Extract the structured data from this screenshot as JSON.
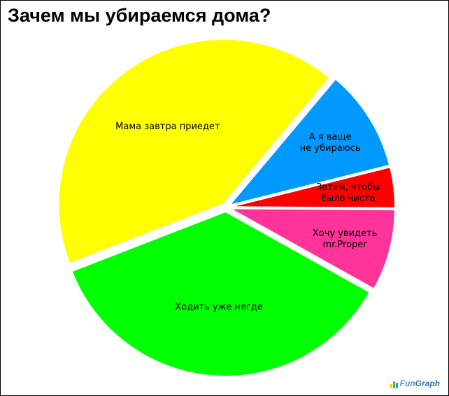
{
  "chart_data": {
    "type": "pie",
    "title": "Зачем мы убираемся дома?",
    "slices": [
      {
        "label_lines": [
          "А я ваще",
          "не убираюсь"
        ],
        "value": 10,
        "color": "#0099ff"
      },
      {
        "label_lines": [
          "Затем, чтобы",
          "было чисто"
        ],
        "value": 4,
        "color": "#ff0000"
      },
      {
        "label_lines": [
          "Хочу увидеть",
          "mr.Proper"
        ],
        "value": 8,
        "color": "#ff3399"
      },
      {
        "label_lines": [
          "Ходить уже негде"
        ],
        "value": 36,
        "color": "#00ff00"
      },
      {
        "label_lines": [
          "Мама завтра приедет"
        ],
        "value": 42,
        "color": "#ffff00"
      }
    ]
  },
  "logo": {
    "part1": "Fun",
    "part2": "Graph",
    "bar_colors": [
      "#ffcc00",
      "#33cc33",
      "#3399ff"
    ]
  }
}
